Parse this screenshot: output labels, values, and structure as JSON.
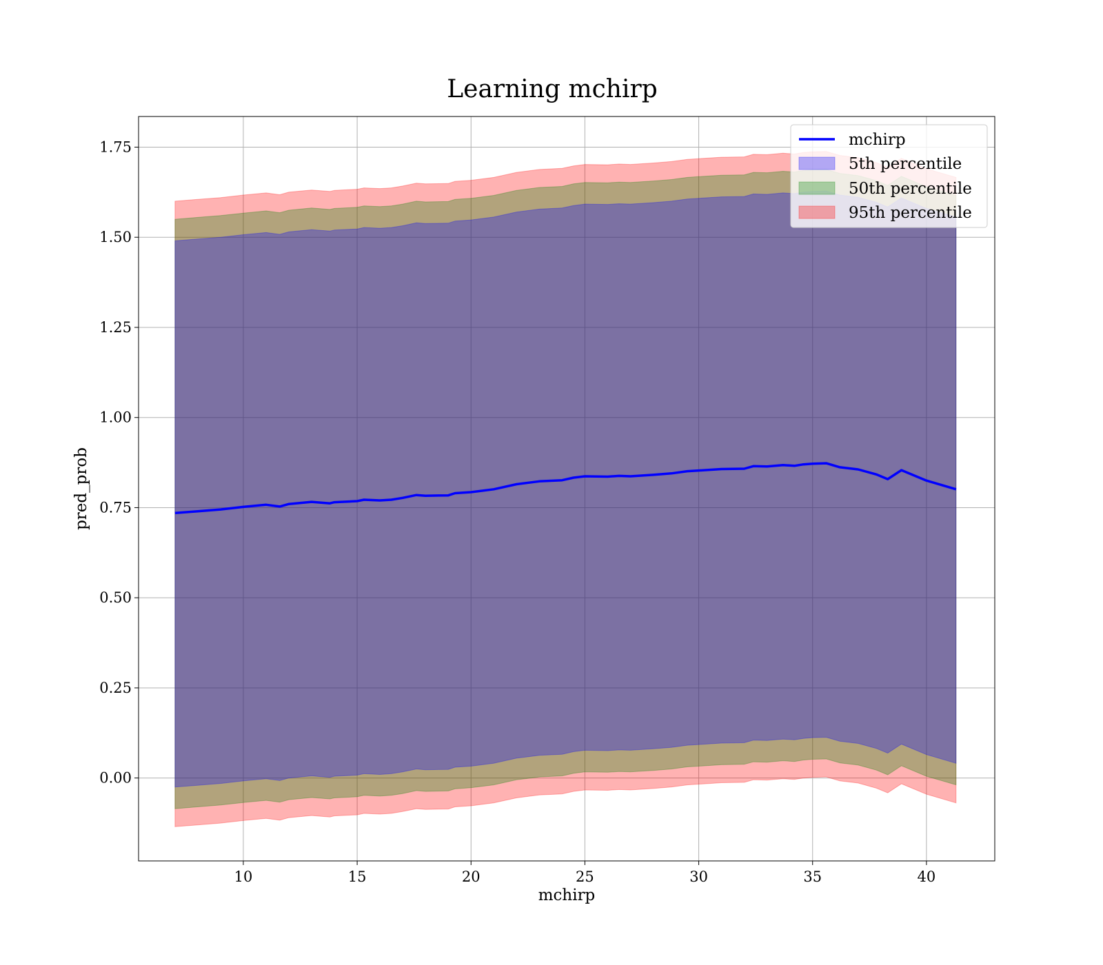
{
  "chart_data": {
    "type": "area",
    "title": "Learning mchirp",
    "xlabel": "mchirp",
    "ylabel": "pred_prob",
    "xlim": [
      5.4,
      43.0
    ],
    "ylim": [
      -0.23,
      1.835
    ],
    "xticks": [
      10,
      15,
      20,
      25,
      30,
      35,
      40
    ],
    "yticks": [
      0.0,
      0.25,
      0.5,
      0.75,
      1.0,
      1.25,
      1.5,
      1.75
    ],
    "xtick_labels": [
      "10",
      "15",
      "20",
      "25",
      "30",
      "35",
      "40"
    ],
    "ytick_labels": [
      "0.00",
      "0.25",
      "0.50",
      "0.75",
      "1.00",
      "1.25",
      "1.50",
      "1.75"
    ],
    "grid": true,
    "legend_position": "top-right",
    "x": [
      7.0,
      8.0,
      9.0,
      10.0,
      11.0,
      11.6,
      12.0,
      13.0,
      13.8,
      14.0,
      15.0,
      15.3,
      16.0,
      16.5,
      17.0,
      17.6,
      18.0,
      19.0,
      19.3,
      20.0,
      21.0,
      22.0,
      23.0,
      24.0,
      24.5,
      25.0,
      26.0,
      26.5,
      27.0,
      28.0,
      28.8,
      29.5,
      30.0,
      31.0,
      32.0,
      32.4,
      33.0,
      33.7,
      34.2,
      34.6,
      35.0,
      35.6,
      36.2,
      37.0,
      37.8,
      38.3,
      38.9,
      40.0,
      41.3
    ],
    "line": {
      "name": "mchirp",
      "color": "#0000ff",
      "values": [
        0.735,
        0.74,
        0.745,
        0.752,
        0.758,
        0.753,
        0.76,
        0.766,
        0.762,
        0.765,
        0.768,
        0.772,
        0.77,
        0.772,
        0.777,
        0.785,
        0.783,
        0.784,
        0.79,
        0.793,
        0.801,
        0.815,
        0.823,
        0.826,
        0.833,
        0.837,
        0.836,
        0.838,
        0.837,
        0.841,
        0.845,
        0.851,
        0.853,
        0.857,
        0.858,
        0.865,
        0.864,
        0.868,
        0.866,
        0.87,
        0.872,
        0.873,
        0.862,
        0.856,
        0.842,
        0.829,
        0.854,
        0.825,
        0.801
      ]
    },
    "bands": [
      {
        "name": "95th percentile",
        "color": "#ff0000",
        "opacity": 0.3,
        "upper_offset": 0.865,
        "lower_offset": 0.87
      },
      {
        "name": "50th percentile",
        "color": "#008000",
        "opacity": 0.3,
        "upper_offset": 0.815,
        "lower_offset": 0.82
      },
      {
        "name": "5th percentile",
        "color": "#0000ff",
        "opacity": 0.3,
        "upper_offset": 0.755,
        "lower_offset": 0.76
      }
    ],
    "legend": [
      {
        "label": "mchirp",
        "kind": "line",
        "color": "#0000ff"
      },
      {
        "label": "5th percentile",
        "kind": "patch",
        "color": "#0000ff"
      },
      {
        "label": "50th percentile",
        "kind": "patch",
        "color": "#008000"
      },
      {
        "label": "95th percentile",
        "kind": "patch",
        "color": "#ff0000"
      }
    ]
  }
}
